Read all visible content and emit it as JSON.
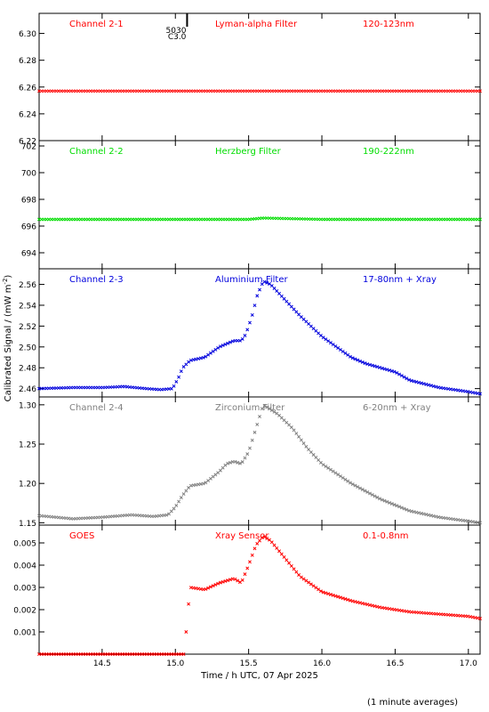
{
  "figure": {
    "ylabel": "Calibrated Signal / (mW m",
    "ylabel_sup": "-2",
    "ylabel_close": ")",
    "xlabel": "Time / h UTC, 07 Apr 2025",
    "footnote": "(1 minute averages)",
    "xlim": [
      14.07,
      17.08
    ],
    "xticks": [
      14.5,
      15.0,
      15.5,
      16.0,
      16.5,
      17.0
    ],
    "xtick_labels": [
      "14.5",
      "15.0",
      "15.5",
      "16.0",
      "16.5",
      "17.0"
    ]
  },
  "flare_marker": {
    "x": 15.08,
    "labels": [
      "5030",
      "C3.0"
    ]
  },
  "chart_data": [
    {
      "type": "scatter",
      "channel": "Channel 2-1",
      "filter": "Lyman-alpha Filter",
      "band": "120-123nm",
      "color": "#ff0000",
      "ylim": [
        6.22,
        6.315
      ],
      "yticks": [
        6.22,
        6.24,
        6.26,
        6.28,
        6.3
      ],
      "ytick_labels": [
        "6.22",
        "6.24",
        "6.26",
        "6.28",
        "6.30"
      ],
      "x": [
        14.07,
        14.5,
        15.0,
        15.5,
        16.0,
        16.5,
        17.08
      ],
      "y": [
        6.257,
        6.257,
        6.257,
        6.257,
        6.257,
        6.257,
        6.257
      ]
    },
    {
      "type": "scatter",
      "channel": "Channel 2-2",
      "filter": "Herzberg Filter",
      "band": "190-222nm",
      "color": "#00dd00",
      "ylim": [
        692.8,
        702.4
      ],
      "yticks": [
        694,
        696,
        698,
        700,
        702
      ],
      "ytick_labels": [
        "694",
        "696",
        "698",
        "700",
        "702"
      ],
      "x": [
        14.07,
        14.5,
        15.0,
        15.5,
        15.6,
        16.0,
        16.5,
        17.08
      ],
      "y": [
        696.5,
        696.5,
        696.5,
        696.5,
        696.6,
        696.5,
        696.5,
        696.5
      ]
    },
    {
      "type": "scatter",
      "channel": "Channel 2-3",
      "filter": "Aluminium Filter",
      "band": "17-80nm + Xray",
      "color": "#0000dd",
      "ylim": [
        2.452,
        2.575
      ],
      "yticks": [
        2.46,
        2.48,
        2.5,
        2.52,
        2.54,
        2.56
      ],
      "ytick_labels": [
        "2.46",
        "2.48",
        "2.50",
        "2.52",
        "2.54",
        "2.56"
      ],
      "x": [
        14.07,
        14.3,
        14.5,
        14.65,
        14.8,
        14.9,
        14.98,
        15.02,
        15.05,
        15.1,
        15.2,
        15.3,
        15.35,
        15.4,
        15.45,
        15.48,
        15.52,
        15.56,
        15.6,
        15.65,
        15.75,
        15.85,
        16.0,
        16.1,
        16.2,
        16.3,
        16.4,
        16.5,
        16.6,
        16.8,
        17.0,
        17.08
      ],
      "y": [
        2.46,
        2.461,
        2.461,
        2.462,
        2.46,
        2.459,
        2.46,
        2.47,
        2.48,
        2.487,
        2.49,
        2.5,
        2.503,
        2.506,
        2.506,
        2.512,
        2.528,
        2.55,
        2.563,
        2.56,
        2.545,
        2.53,
        2.51,
        2.5,
        2.49,
        2.484,
        2.48,
        2.476,
        2.468,
        2.461,
        2.457,
        2.455
      ]
    },
    {
      "type": "scatter",
      "channel": "Channel 2-4",
      "filter": "Zirconium Filter",
      "band": "6-20nm + Xray",
      "color": "#808080",
      "ylim": [
        1.147,
        1.31
      ],
      "yticks": [
        1.15,
        1.2,
        1.25,
        1.3
      ],
      "ytick_labels": [
        "1.15",
        "1.20",
        "1.25",
        "1.30"
      ],
      "x": [
        14.07,
        14.3,
        14.5,
        14.7,
        14.85,
        14.95,
        15.0,
        15.05,
        15.1,
        15.2,
        15.3,
        15.35,
        15.4,
        15.45,
        15.5,
        15.55,
        15.6,
        15.7,
        15.8,
        15.9,
        16.0,
        16.2,
        16.4,
        16.6,
        16.8,
        17.0,
        17.08
      ],
      "y": [
        1.159,
        1.155,
        1.157,
        1.16,
        1.158,
        1.16,
        1.17,
        1.185,
        1.197,
        1.2,
        1.215,
        1.225,
        1.228,
        1.225,
        1.24,
        1.27,
        1.3,
        1.288,
        1.27,
        1.245,
        1.225,
        1.2,
        1.18,
        1.165,
        1.157,
        1.152,
        1.15
      ]
    },
    {
      "type": "scatter",
      "channel": "GOES",
      "filter": "Xray Sensor",
      "band": "0.1-0.8nm",
      "color": "#ff0000",
      "ylim": [
        0.0,
        0.0058
      ],
      "yticks": [
        0.001,
        0.002,
        0.003,
        0.004,
        0.005
      ],
      "ytick_labels": [
        "0.001",
        "0.002",
        "0.003",
        "0.004",
        "0.005"
      ],
      "x": [
        14.07,
        14.5,
        15.0,
        15.06,
        15.1,
        15.2,
        15.3,
        15.4,
        15.45,
        15.5,
        15.55,
        15.6,
        15.65,
        15.75,
        15.85,
        16.0,
        16.2,
        16.4,
        16.6,
        16.8,
        17.0,
        17.08
      ],
      "y": [
        0.0,
        0.0,
        0.0,
        0.0,
        0.003,
        0.0029,
        0.0032,
        0.0034,
        0.0032,
        0.004,
        0.0049,
        0.0053,
        0.0051,
        0.0043,
        0.0035,
        0.0028,
        0.0024,
        0.0021,
        0.0019,
        0.0018,
        0.0017,
        0.0016
      ]
    }
  ]
}
